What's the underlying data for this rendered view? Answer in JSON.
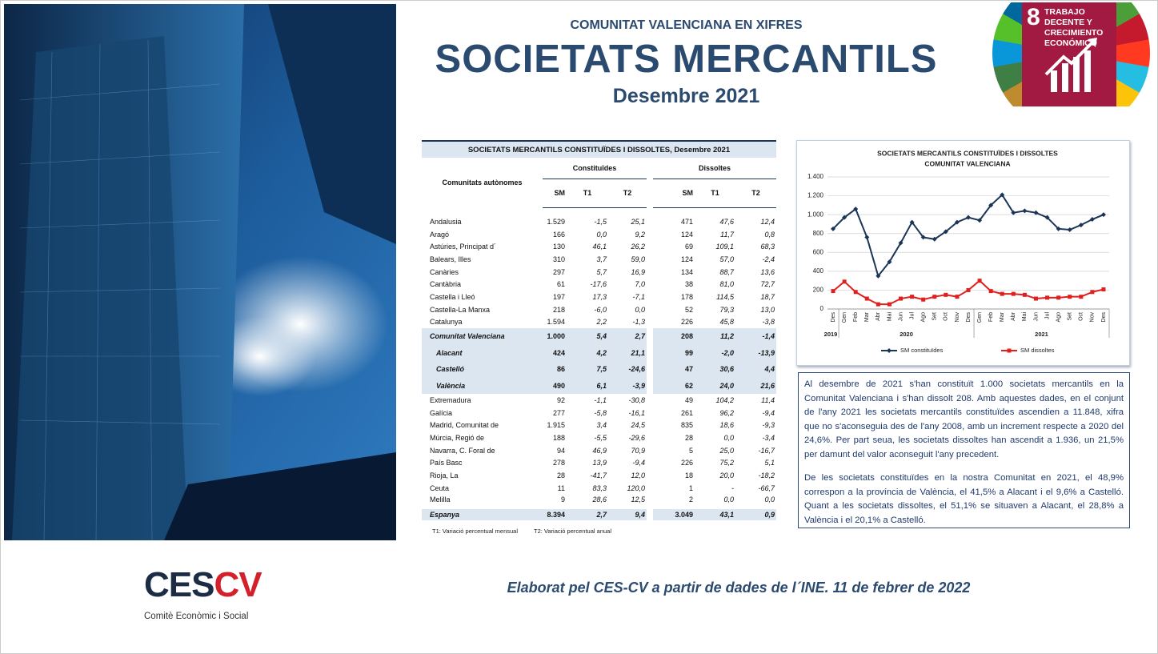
{
  "header": {
    "kicker": "COMUNITAT VALENCIANA EN XIFRES",
    "title": "SOCIETATS MERCANTILS",
    "subtitle": "Desembre 2021"
  },
  "sdg_badge": {
    "number": "8",
    "label": "TRABAJO DECENTE Y CRECIMIENTO ECONÓMICO"
  },
  "table": {
    "title": "SOCIETATS MERCANTILS CONSTITUÏDES I DISSOLTES, Desembre 2021",
    "row_header": "Comunitats autònomes",
    "groups": [
      "Constituïdes",
      "Dissoltes"
    ],
    "columns": [
      "SM",
      "T1",
      "T2",
      "SM",
      "T1",
      "T2"
    ],
    "rows": [
      [
        "Andalusia",
        "1.529",
        "-1,5",
        "25,1",
        "471",
        "47,6",
        "12,4"
      ],
      [
        "Aragó",
        "166",
        "0,0",
        "9,2",
        "124",
        "11,7",
        "0,8"
      ],
      [
        "Astúries, Principat d´",
        "130",
        "46,1",
        "26,2",
        "69",
        "109,1",
        "68,3"
      ],
      [
        "Balears, Illes",
        "310",
        "3,7",
        "59,0",
        "124",
        "57,0",
        "-2,4"
      ],
      [
        "Canàries",
        "297",
        "5,7",
        "16,9",
        "134",
        "88,7",
        "13,6"
      ],
      [
        "Cantàbria",
        "61",
        "-17,6",
        "7,0",
        "38",
        "81,0",
        "72,7"
      ],
      [
        "Castella i Lleó",
        "197",
        "17,3",
        "-7,1",
        "178",
        "114,5",
        "18,7"
      ],
      [
        "Castella-La Manxa",
        "218",
        "-6,0",
        "0,0",
        "52",
        "79,3",
        "13,0"
      ],
      [
        "Catalunya",
        "1.594",
        "2,2",
        "-1,3",
        "226",
        "45,8",
        "-3,8"
      ],
      [
        "Comunitat Valenciana",
        "1.000",
        "5,4",
        "2,7",
        "208",
        "11,2",
        "-1,4"
      ],
      [
        "Alacant",
        "424",
        "4,2",
        "21,1",
        "99",
        "-2,0",
        "-13,9"
      ],
      [
        "Castelló",
        "86",
        "7,5",
        "-24,6",
        "47",
        "30,6",
        "4,4"
      ],
      [
        "València",
        "490",
        "6,1",
        "-3,9",
        "62",
        "24,0",
        "21,6"
      ],
      [
        "Extremadura",
        "92",
        "-1,1",
        "-30,8",
        "49",
        "104,2",
        "11,4"
      ],
      [
        "Galícia",
        "277",
        "-5,8",
        "-16,1",
        "261",
        "96,2",
        "-9,4"
      ],
      [
        "Madrid, Comunitat de",
        "1.915",
        "3,4",
        "24,5",
        "835",
        "18,6",
        "-9,3"
      ],
      [
        "Múrcia, Regió de",
        "188",
        "-5,5",
        "-29,6",
        "28",
        "0,0",
        "-3,4"
      ],
      [
        "Navarra, C. Foral de",
        "94",
        "46,9",
        "70,9",
        "5",
        "25,0",
        "-16,7"
      ],
      [
        "País Basc",
        "278",
        "13,9",
        "-9,4",
        "226",
        "75,2",
        "5,1"
      ],
      [
        "Rioja, La",
        "28",
        "-41,7",
        "12,0",
        "18",
        "20,0",
        "-18,2"
      ],
      [
        "Ceuta",
        "11",
        "83,3",
        "120,0",
        "1",
        "-",
        "-66,7"
      ],
      [
        "Melilla",
        "9",
        "28,6",
        "12,5",
        "2",
        "0,0",
        "0,0"
      ],
      [
        "Espanya",
        "8.394",
        "2,7",
        "9,4",
        "3.049",
        "43,1",
        "0,9"
      ]
    ],
    "notes": [
      "T1: Variació percentual mensual",
      "T2: Variació percentual anual"
    ]
  },
  "chart_data": {
    "type": "line",
    "title": "SOCIETATS MERCANTILS CONSTITUÏDES I DISSOLTES",
    "subtitle": "COMUNITAT VALENCIANA",
    "categories": [
      "Des",
      "Gen",
      "Feb",
      "Mar",
      "Abr",
      "Mai",
      "Jun",
      "Jul",
      "Ago",
      "Set",
      "Oct",
      "Nov",
      "Des",
      "Gen",
      "Feb",
      "Mar",
      "Abr",
      "Mai",
      "Jun",
      "Jul",
      "Ago",
      "Set",
      "Oct",
      "Nov",
      "Des"
    ],
    "x_groups": [
      {
        "label": "2019",
        "count": 1
      },
      {
        "label": "2020",
        "count": 12
      },
      {
        "label": "2021",
        "count": 12
      }
    ],
    "series": [
      {
        "name": "SM constituïdes",
        "color": "#1b3557",
        "marker": "diamond",
        "values": [
          850,
          970,
          1060,
          760,
          350,
          500,
          700,
          920,
          760,
          740,
          820,
          920,
          970,
          940,
          1100,
          1210,
          1020,
          1040,
          1020,
          970,
          850,
          840,
          890,
          950,
          1000
        ]
      },
      {
        "name": "SM dissoltes",
        "color": "#e0201e",
        "marker": "square",
        "values": [
          190,
          290,
          180,
          110,
          50,
          50,
          110,
          130,
          100,
          130,
          150,
          130,
          200,
          300,
          190,
          160,
          160,
          150,
          110,
          120,
          120,
          130,
          130,
          180,
          208
        ]
      }
    ],
    "ylim": [
      0,
      1400
    ],
    "yticks": [
      0,
      200,
      400,
      600,
      800,
      {
        "value": 1000,
        "label": "1.000"
      },
      {
        "value": 1200,
        "label": "1.200"
      },
      {
        "value": 1400,
        "label": "1.400"
      }
    ],
    "grid": true,
    "legend": "bottom"
  },
  "commentary": [
    "Al desembre de 2021 s'han constituït 1.000 societats mercantils en la Comunitat Valenciana i s'han dissolt 208. Amb aquestes dades, en el conjunt de l'any 2021 les societats mercantils constituïdes ascendien a 11.848, xifra que no s'aconseguia des de l'any 2008, amb un increment respecte a 2020 del 24,6%. Per part seua, les societats dissoltes han ascendit a 1.936, un 21,5% per damunt del valor aconseguit l'any precedent.",
    "De les societats constituïdes en la nostra Comunitat en 2021, el 48,9% correspon a la província de València, el 41,5% a Alacant i el 9,6% a Castelló. Quant a les societats dissoltes, el 51,1% se situaven a Alacant, el 28,8% a València i el 20,1% a Castelló."
  ],
  "footer": {
    "logo": "CES",
    "logo_accent": "CV",
    "logo_caption": "Comitè Econòmic i Social",
    "source": "Elaborat pel CES-CV a partir de dades de l´INE. 11 de febrer de 2022"
  }
}
